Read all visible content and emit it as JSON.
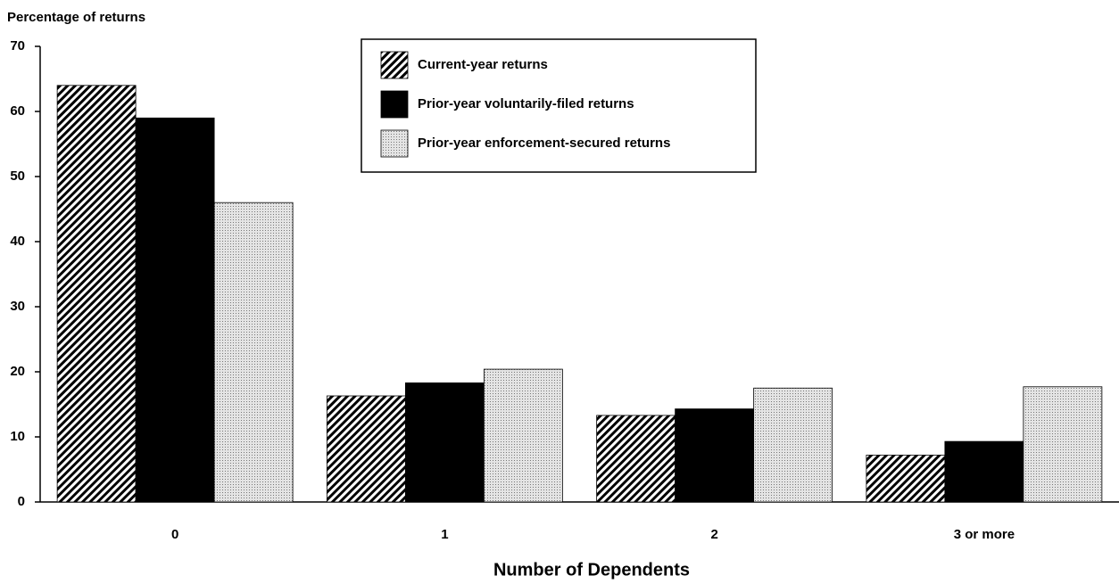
{
  "chart_data": {
    "type": "bar",
    "y_label": "Percentage of returns",
    "x_label": "Number of Dependents",
    "categories": [
      "0",
      "1",
      "2",
      "3 or more"
    ],
    "series": [
      {
        "name": "Current-year returns",
        "color": "#000000",
        "pattern": "hatch",
        "values": [
          64,
          16.3,
          13.3,
          7.2
        ]
      },
      {
        "name": "Prior-year voluntarily-filed returns",
        "color": "#000000",
        "pattern": "solid",
        "values": [
          59,
          18.3,
          14.3,
          9.3
        ]
      },
      {
        "name": "Prior-year enforcement-secured returns",
        "color": "#cfcfcf",
        "pattern": "dots",
        "values": [
          46,
          20.4,
          17.5,
          17.7
        ]
      }
    ],
    "ylim": [
      0,
      70
    ],
    "yticks": [
      0,
      10,
      20,
      30,
      40,
      50,
      60,
      70
    ],
    "grid": false,
    "legend": "top"
  }
}
